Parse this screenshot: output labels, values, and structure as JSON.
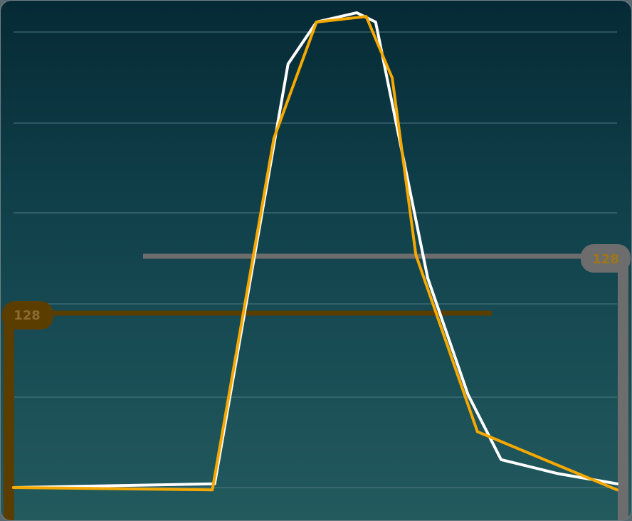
{
  "chart_data": {
    "type": "line",
    "title": "",
    "xlabel": "",
    "ylabel": "",
    "xlim": [
      0,
      255
    ],
    "ylim": [
      0,
      1
    ],
    "grid": true,
    "colors": {
      "series_white": "#ffffff",
      "series_orange": "#f5a800",
      "handle_orange": "#5c3d00",
      "handle_orange_text": "#8a6a30",
      "handle_gray": "#6d6d6d",
      "handle_gray_text": "#a17616"
    },
    "series": [
      {
        "color": "#ffffff",
        "points": [
          [
            0,
            0.0
          ],
          [
            85,
            0.008
          ],
          [
            116,
            0.91
          ],
          [
            128,
            1.0
          ],
          [
            145,
            1.02
          ],
          [
            153,
            1.0
          ],
          [
            175,
            0.45
          ],
          [
            192,
            0.2
          ],
          [
            206,
            0.06
          ],
          [
            230,
            0.03
          ],
          [
            255,
            0.008
          ]
        ]
      },
      {
        "color": "#f5a800",
        "points": [
          [
            0,
            0.0
          ],
          [
            84,
            -0.005
          ],
          [
            110,
            0.75
          ],
          [
            128,
            1.0
          ],
          [
            149,
            1.012
          ],
          [
            160,
            0.88
          ],
          [
            170,
            0.5
          ],
          [
            196,
            0.12
          ],
          [
            255,
            -0.005
          ]
        ]
      }
    ],
    "handles": {
      "left": {
        "text": "128",
        "x_start": 128,
        "x_end": 206,
        "y_value": 0.385
      },
      "right": {
        "text": "128",
        "x_start": 60,
        "x_end": 255,
        "y_value": 0.5
      }
    }
  }
}
